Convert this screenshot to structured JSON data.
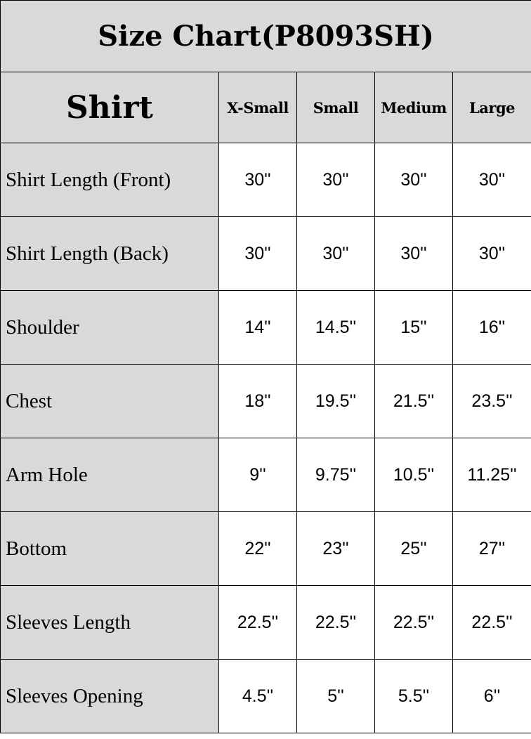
{
  "title": "Size Chart(P8093SH)",
  "header": {
    "main": "Shirt",
    "sizes": [
      "X-Small",
      "Small",
      "Medium",
      "Large"
    ]
  },
  "rows": [
    {
      "label": "Shirt Length (Front)",
      "values": [
        "30''",
        "30''",
        "30''",
        "30''"
      ]
    },
    {
      "label": "Shirt Length (Back)",
      "values": [
        "30''",
        "30''",
        "30''",
        "30''"
      ]
    },
    {
      "label": "Shoulder",
      "values": [
        "14''",
        "14.5''",
        "15''",
        "16''"
      ]
    },
    {
      "label": "Chest",
      "values": [
        "18''",
        "19.5''",
        "21.5''",
        "23.5''"
      ]
    },
    {
      "label": "Arm Hole",
      "values": [
        "9''",
        "9.75''",
        "10.5''",
        "11.25''"
      ]
    },
    {
      "label": "Bottom",
      "values": [
        "22''",
        "23''",
        "25''",
        "27''"
      ]
    },
    {
      "label": "Sleeves Length",
      "values": [
        "22.5''",
        "22.5''",
        "22.5''",
        "22.5''"
      ]
    },
    {
      "label": "Sleeves Opening",
      "values": [
        "4.5''",
        "5''",
        "5.5''",
        "6''"
      ]
    }
  ]
}
